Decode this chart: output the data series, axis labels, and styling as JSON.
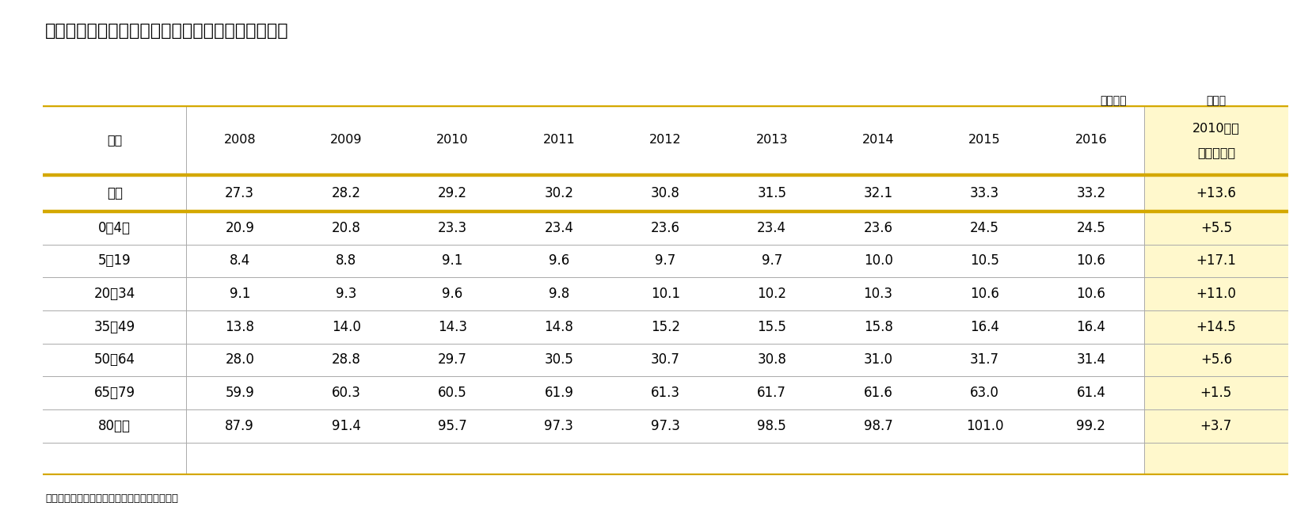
{
  "title": "図表３　年齢群団別　一人当たり国民医療費の推移",
  "unit_left": "（万円）",
  "unit_right": "（％）",
  "caption": "（資料）厚生労働省「国民医療費」（各年度）",
  "header_col": "年度",
  "header_years": [
    "2008",
    "2009",
    "2010",
    "2011",
    "2012",
    "2013",
    "2014",
    "2015",
    "2016"
  ],
  "header_last_line1": "2010年度",
  "header_last_line2": "からの伸び",
  "rows": [
    {
      "label": "全体",
      "values": [
        "27.3",
        "28.2",
        "29.2",
        "30.2",
        "30.8",
        "31.5",
        "32.1",
        "33.3",
        "33.2"
      ],
      "last": "+13.6",
      "is_total": true
    },
    {
      "label": "0～4歳",
      "values": [
        "20.9",
        "20.8",
        "23.3",
        "23.4",
        "23.6",
        "23.4",
        "23.6",
        "24.5",
        "24.5"
      ],
      "last": "+5.5",
      "is_total": false
    },
    {
      "label": "5～19",
      "values": [
        "8.4",
        "8.8",
        "9.1",
        "9.6",
        "9.7",
        "9.7",
        "10.0",
        "10.5",
        "10.6"
      ],
      "last": "+17.1",
      "is_total": false
    },
    {
      "label": "20～34",
      "values": [
        "9.1",
        "9.3",
        "9.6",
        "9.8",
        "10.1",
        "10.2",
        "10.3",
        "10.6",
        "10.6"
      ],
      "last": "+11.0",
      "is_total": false
    },
    {
      "label": "35～49",
      "values": [
        "13.8",
        "14.0",
        "14.3",
        "14.8",
        "15.2",
        "15.5",
        "15.8",
        "16.4",
        "16.4"
      ],
      "last": "+14.5",
      "is_total": false
    },
    {
      "label": "50～64",
      "values": [
        "28.0",
        "28.8",
        "29.7",
        "30.5",
        "30.7",
        "30.8",
        "31.0",
        "31.7",
        "31.4"
      ],
      "last": "+5.6",
      "is_total": false
    },
    {
      "label": "65～79",
      "values": [
        "59.9",
        "60.3",
        "60.5",
        "61.9",
        "61.3",
        "61.7",
        "61.6",
        "63.0",
        "61.4"
      ],
      "last": "+1.5",
      "is_total": false
    },
    {
      "label": "80歳～",
      "values": [
        "87.9",
        "91.4",
        "95.7",
        "97.3",
        "97.3",
        "98.5",
        "98.7",
        "101.0",
        "99.2"
      ],
      "last": "+3.7",
      "is_total": false
    }
  ],
  "color_gold": "#D4A800",
  "color_last_col_bg": "#FFF8CC",
  "color_text": "#000000",
  "color_gray_line": "#AAAAAA",
  "bg_color": "#FFFFFF"
}
